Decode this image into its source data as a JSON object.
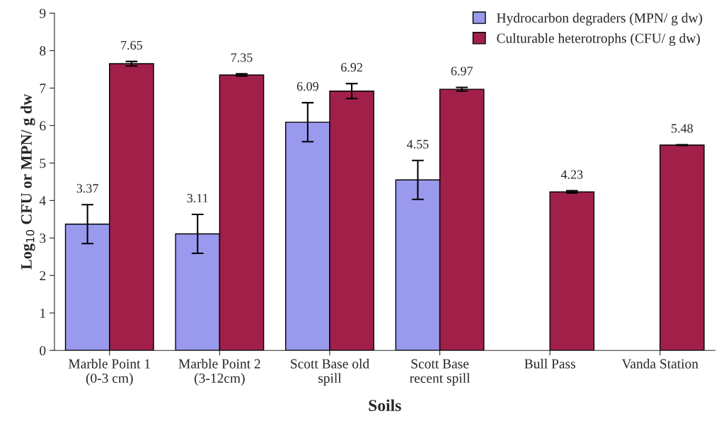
{
  "chart_data": {
    "type": "bar",
    "xlabel": "Soils",
    "ylabel": "Log$_{10}$ CFU or MPN/ g dw",
    "categories": [
      "Marble Point 1\n(0-3 cm)",
      "Marble Point 2\n(3-12cm)",
      "Scott Base old\nspill",
      "Scott Base\nrecent spill",
      "Bull Pass",
      "Vanda Station"
    ],
    "series": [
      {
        "name": "Hydrocarbon degraders (MPN/ g dw)",
        "color": "#9999ee",
        "values": [
          3.37,
          3.11,
          6.09,
          4.55,
          null,
          null
        ],
        "errors": [
          0.52,
          0.52,
          0.52,
          0.52,
          null,
          null
        ]
      },
      {
        "name": "Culturable heterotrophs (CFU/ g dw)",
        "color": "#a0204a",
        "values": [
          7.65,
          7.35,
          6.92,
          6.97,
          4.23,
          5.48
        ],
        "errors": [
          0.06,
          0.03,
          0.2,
          0.05,
          0.03,
          0.01
        ]
      }
    ],
    "data_labels": true,
    "ylim": [
      0,
      9
    ],
    "yticks": [
      0,
      1,
      2,
      3,
      4,
      5,
      6,
      7,
      8,
      9
    ],
    "grid": false,
    "legend": "top right"
  }
}
